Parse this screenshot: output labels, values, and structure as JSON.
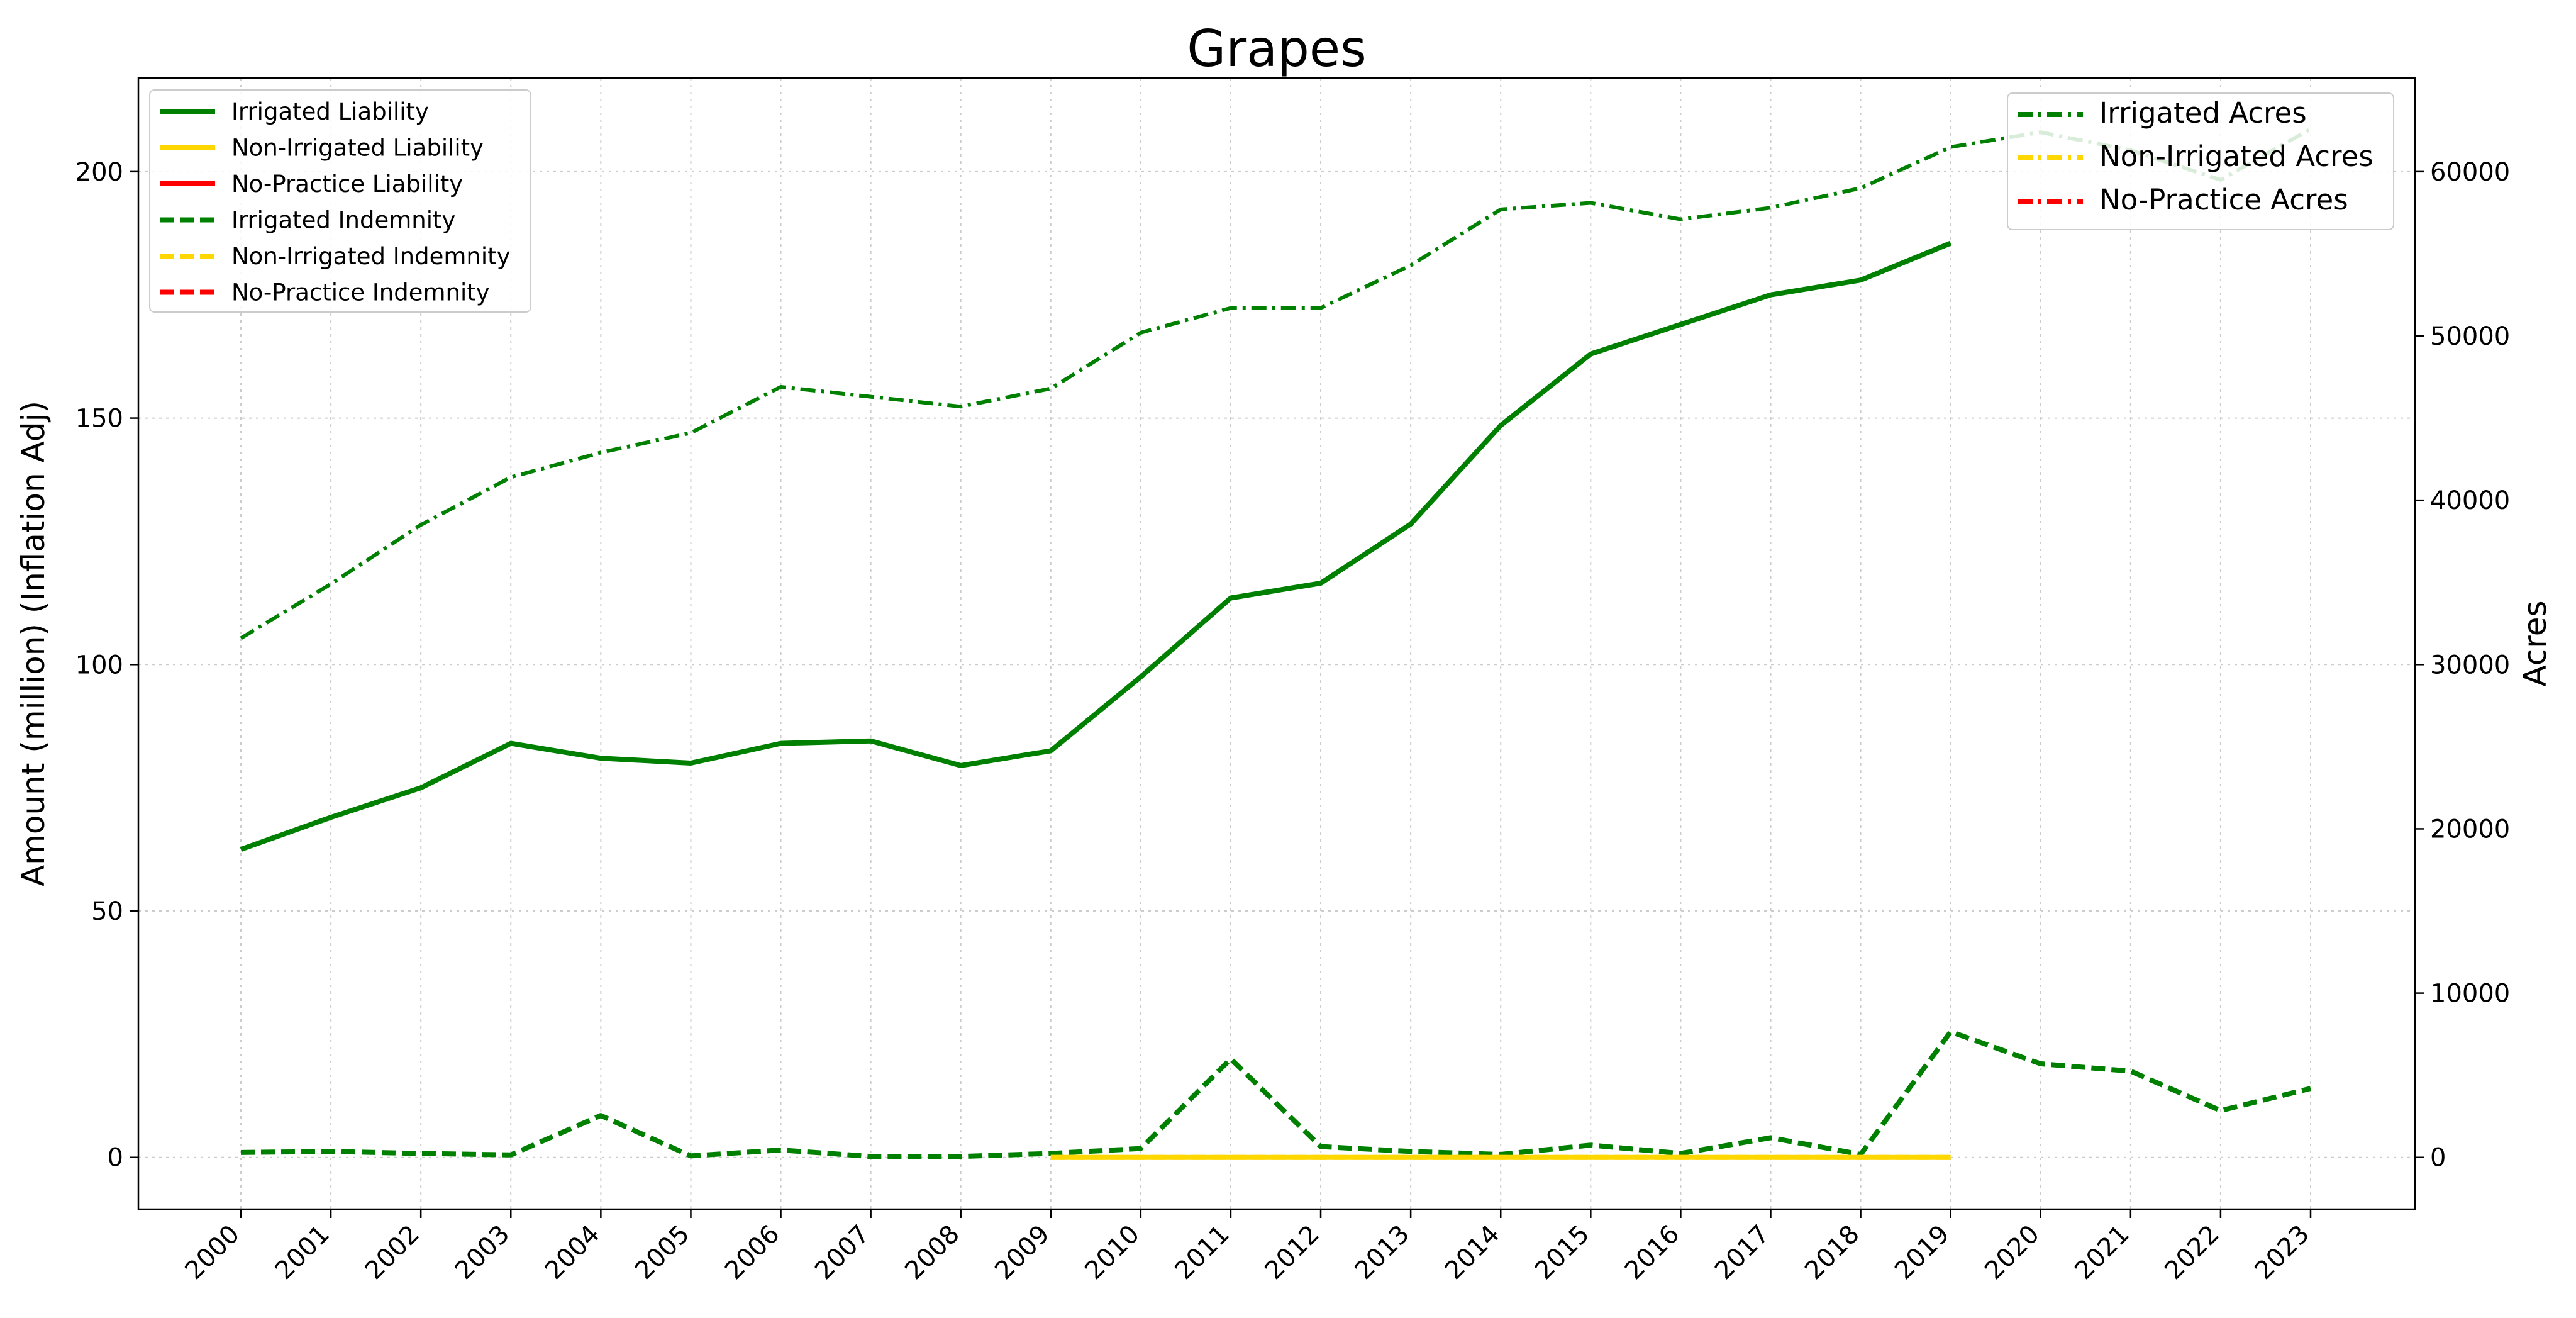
{
  "chart_data": {
    "type": "line",
    "title": "Grapes",
    "xlabel": "",
    "ylabel": "Amount (million) (Inflation Adj)",
    "y2label": "Acres",
    "categories": [
      "2000",
      "2001",
      "2002",
      "2003",
      "2004",
      "2005",
      "2006",
      "2007",
      "2008",
      "2009",
      "2010",
      "2011",
      "2012",
      "2013",
      "2014",
      "2015",
      "2016",
      "2017",
      "2018",
      "2019",
      "2020",
      "2021",
      "2022",
      "2023"
    ],
    "ylim": [
      -10.5,
      219
    ],
    "y2lim": [
      -3150,
      65700
    ],
    "yticks": [
      0,
      50,
      100,
      150,
      200
    ],
    "y2ticks": [
      0,
      10000,
      20000,
      30000,
      40000,
      50000,
      60000
    ],
    "grid": true,
    "series": [
      {
        "name": "Irrigated Liability",
        "axis": "left",
        "color": "#008000",
        "style": "solid",
        "values": [
          62.5,
          69,
          75,
          84,
          81,
          80,
          84,
          84.5,
          79.5,
          82.5,
          97.5,
          113.5,
          116.5,
          128.5,
          148.5,
          163,
          169,
          175,
          178,
          185.5,
          null,
          null,
          null,
          null
        ]
      },
      {
        "name": "Non-Irrigated Liability",
        "axis": "left",
        "color": "#FFD700",
        "style": "solid",
        "values": [
          null,
          null,
          null,
          null,
          null,
          null,
          null,
          null,
          null,
          0,
          0,
          0,
          0,
          0,
          0,
          0,
          0,
          0,
          0,
          0,
          null,
          null,
          null,
          null
        ]
      },
      {
        "name": "No-Practice Liability",
        "axis": "left",
        "color": "#FF0000",
        "style": "solid",
        "values": [
          null,
          null,
          null,
          null,
          null,
          null,
          null,
          null,
          null,
          null,
          null,
          null,
          null,
          null,
          null,
          null,
          null,
          null,
          null,
          null,
          null,
          null,
          null,
          null
        ]
      },
      {
        "name": "Irrigated Indemnity",
        "axis": "left",
        "color": "#008000",
        "style": "dashed",
        "values": [
          1,
          1.2,
          0.8,
          0.5,
          8.5,
          0.3,
          1.5,
          0.2,
          0.2,
          0.8,
          1.8,
          20,
          2.2,
          1.2,
          0.6,
          2.5,
          0.8,
          4,
          0.6,
          25.5,
          19,
          17.5,
          9.5,
          14
        ]
      },
      {
        "name": "Non-Irrigated Indemnity",
        "axis": "left",
        "color": "#FFD700",
        "style": "dashed",
        "values": [
          null,
          null,
          null,
          null,
          null,
          null,
          null,
          null,
          null,
          0,
          0,
          0,
          0,
          0,
          0,
          0,
          0,
          0,
          0,
          0,
          null,
          null,
          null,
          null
        ]
      },
      {
        "name": "No-Practice Indemnity",
        "axis": "left",
        "color": "#FF0000",
        "style": "dashed",
        "values": [
          null,
          null,
          null,
          null,
          null,
          null,
          null,
          null,
          null,
          null,
          null,
          null,
          null,
          null,
          null,
          null,
          null,
          null,
          null,
          null,
          null,
          null,
          null,
          null
        ]
      },
      {
        "name": "Irrigated Acres",
        "axis": "right",
        "color": "#008000",
        "style": "dashdot",
        "values": [
          31600,
          34900,
          38500,
          41400,
          42900,
          44100,
          46900,
          46300,
          45700,
          46800,
          50200,
          51700,
          51700,
          54300,
          57700,
          58100,
          57100,
          57800,
          59000,
          61500,
          62400,
          61300,
          59500,
          62600
        ]
      },
      {
        "name": "Non-Irrigated Acres",
        "axis": "right",
        "color": "#FFD700",
        "style": "dashdot",
        "values": [
          null,
          null,
          null,
          null,
          null,
          null,
          null,
          null,
          null,
          null,
          null,
          null,
          null,
          null,
          null,
          null,
          null,
          null,
          null,
          null,
          null,
          null,
          null,
          null
        ]
      },
      {
        "name": "No-Practice Acres",
        "axis": "right",
        "color": "#FF0000",
        "style": "dashdot",
        "values": [
          null,
          null,
          null,
          null,
          null,
          null,
          null,
          null,
          null,
          null,
          null,
          null,
          null,
          null,
          null,
          null,
          null,
          null,
          null,
          null,
          null,
          null,
          null,
          null
        ]
      }
    ],
    "legend_left": {
      "placement": "top-left",
      "items": [
        "Irrigated Liability",
        "Non-Irrigated Liability",
        "No-Practice Liability",
        "Irrigated Indemnity",
        "Non-Irrigated Indemnity",
        "No-Practice Indemnity"
      ]
    },
    "legend_right": {
      "placement": "top-right",
      "items": [
        "Irrigated Acres",
        "Non-Irrigated Acres",
        "No-Practice Acres"
      ]
    }
  }
}
